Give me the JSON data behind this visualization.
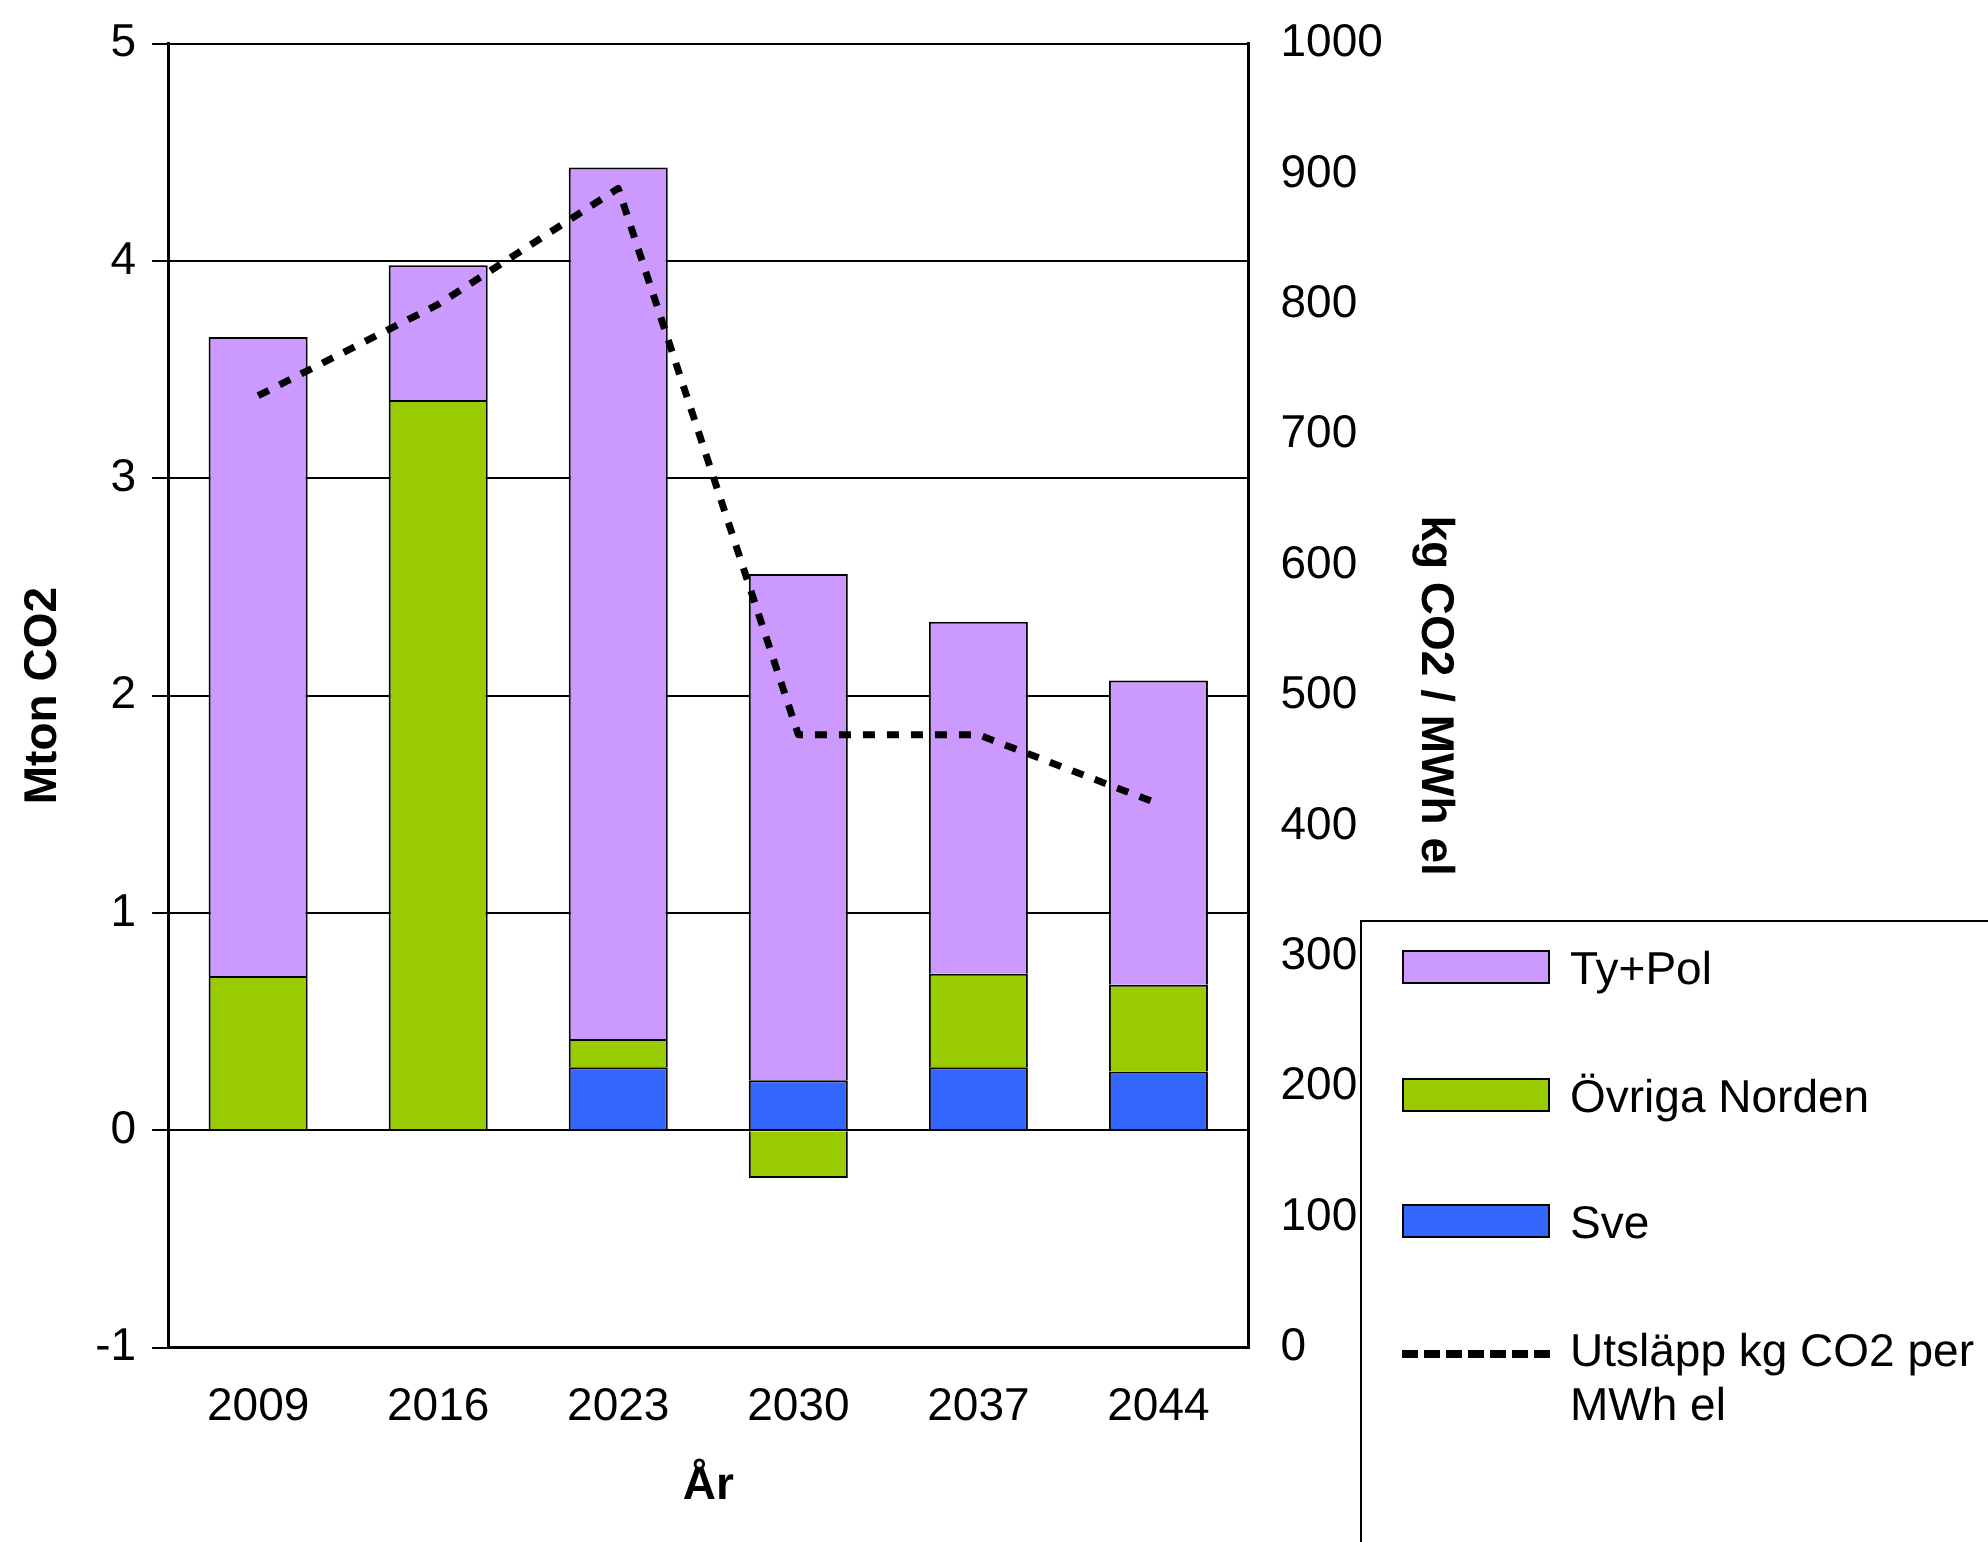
{
  "chart_data": {
    "type": "bar",
    "stacked": true,
    "categories": [
      "2009",
      "2016",
      "2023",
      "2030",
      "2037",
      "2044"
    ],
    "xlabel": "År",
    "ylabel": "Mton CO2",
    "y2label": "kg CO2 / MWh el",
    "series": [
      {
        "name": "Sve",
        "color": "#3366ff",
        "values": [
          0,
          0,
          0.29,
          0.23,
          0.29,
          0.27
        ]
      },
      {
        "name": "Övriga Norden",
        "color": "#99cc00",
        "values": [
          0.71,
          3.36,
          0.13,
          -0.22,
          0.43,
          0.4
        ]
      },
      {
        "name": "Ty+Pol",
        "color": "#cc99ff",
        "values": [
          2.94,
          0.62,
          4.01,
          2.33,
          1.62,
          1.4
        ]
      },
      {
        "name": "Utsläpp kg CO2 per MWh el",
        "type": "line",
        "axis": "y2",
        "color": "#000000",
        "line_style": "dashed",
        "marker": "none",
        "values": [
          730,
          800,
          889,
          470,
          470,
          417
        ]
      }
    ],
    "ylim": [
      -1,
      5
    ],
    "yticks": [
      -1,
      0,
      1,
      2,
      3,
      4,
      5
    ],
    "y2lim": [
      0,
      1000
    ],
    "y2ticks": [
      0,
      100,
      200,
      300,
      400,
      500,
      600,
      700,
      800,
      900,
      1000
    ],
    "grid": "y",
    "legend": "right"
  }
}
